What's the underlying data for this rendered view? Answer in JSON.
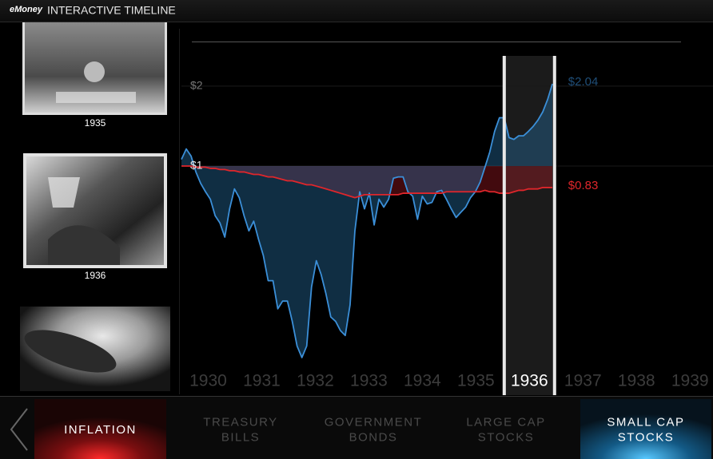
{
  "header": {
    "brand": "eMoney",
    "title": "INTERACTIVE TIMELINE"
  },
  "photos": [
    {
      "caption": "1935"
    },
    {
      "caption": "1936"
    },
    {
      "caption": null
    }
  ],
  "chart_data": {
    "type": "line",
    "log_scale": true,
    "x": [
      1930,
      1930.09,
      1930.18,
      1930.27,
      1930.36,
      1930.45,
      1930.54,
      1930.63,
      1930.72,
      1930.81,
      1930.9,
      1930.99,
      1931.08,
      1931.17,
      1931.26,
      1931.35,
      1931.44,
      1931.53,
      1931.62,
      1931.71,
      1931.8,
      1931.89,
      1931.98,
      1932.07,
      1932.16,
      1932.25,
      1932.34,
      1932.43,
      1932.52,
      1932.61,
      1932.7,
      1932.79,
      1932.88,
      1932.97,
      1933.06,
      1933.15,
      1933.24,
      1933.33,
      1933.42,
      1933.51,
      1933.6,
      1933.69,
      1933.78,
      1933.87,
      1933.96,
      1934.05,
      1934.14,
      1934.23,
      1934.32,
      1934.41,
      1934.5,
      1934.59,
      1934.68,
      1934.77,
      1934.86,
      1934.95,
      1935.04,
      1935.13,
      1935.22,
      1935.31,
      1935.4,
      1935.49,
      1935.58,
      1935.67,
      1935.76,
      1935.85,
      1935.94,
      1936.03,
      1936.12,
      1936.21,
      1936.3,
      1936.39,
      1936.48,
      1936.57,
      1936.66,
      1936.75,
      1936.84,
      1936.93
    ],
    "series": [
      {
        "name": "SMALL CAP STOCKS",
        "color": "#3b8fd8",
        "end_label": "$2.04",
        "values": [
          1.06,
          1.16,
          1.09,
          0.95,
          0.86,
          0.8,
          0.75,
          0.65,
          0.61,
          0.54,
          0.69,
          0.82,
          0.76,
          0.65,
          0.57,
          0.62,
          0.53,
          0.46,
          0.37,
          0.37,
          0.29,
          0.31,
          0.31,
          0.26,
          0.21,
          0.19,
          0.21,
          0.35,
          0.44,
          0.39,
          0.33,
          0.27,
          0.26,
          0.24,
          0.23,
          0.3,
          0.57,
          0.8,
          0.69,
          0.79,
          0.6,
          0.75,
          0.7,
          0.75,
          0.9,
          0.91,
          0.91,
          0.8,
          0.77,
          0.63,
          0.77,
          0.72,
          0.73,
          0.8,
          0.81,
          0.75,
          0.69,
          0.64,
          0.67,
          0.7,
          0.76,
          0.8,
          0.87,
          0.99,
          1.13,
          1.35,
          1.52,
          1.52,
          1.28,
          1.26,
          1.3,
          1.3,
          1.35,
          1.41,
          1.49,
          1.6,
          1.78,
          2.04
        ]
      },
      {
        "name": "INFLATION",
        "color": "#e0262b",
        "end_label": "$0.83",
        "values": [
          1,
          1,
          1,
          0.99,
          0.99,
          0.99,
          0.98,
          0.98,
          0.97,
          0.97,
          0.96,
          0.96,
          0.95,
          0.95,
          0.94,
          0.93,
          0.93,
          0.92,
          0.91,
          0.91,
          0.9,
          0.89,
          0.88,
          0.88,
          0.87,
          0.86,
          0.85,
          0.85,
          0.84,
          0.83,
          0.82,
          0.81,
          0.8,
          0.79,
          0.78,
          0.77,
          0.76,
          0.77,
          0.78,
          0.78,
          0.78,
          0.78,
          0.78,
          0.78,
          0.78,
          0.78,
          0.79,
          0.79,
          0.79,
          0.79,
          0.79,
          0.79,
          0.79,
          0.79,
          0.79,
          0.8,
          0.8,
          0.8,
          0.8,
          0.8,
          0.8,
          0.8,
          0.8,
          0.81,
          0.8,
          0.8,
          0.79,
          0.79,
          0.79,
          0.8,
          0.81,
          0.81,
          0.82,
          0.82,
          0.82,
          0.83,
          0.83,
          0.83
        ]
      }
    ],
    "xlim": [
      1930,
      1939.93
    ],
    "ylim": [
      0.14,
      3.2
    ],
    "xticks": [
      1930,
      1931,
      1932,
      1933,
      1934,
      1935,
      1936,
      1937,
      1938,
      1939
    ],
    "yticks": [
      {
        "value": 2,
        "label": "$2"
      },
      {
        "value": 1,
        "label": "$1"
      }
    ],
    "selected_year": 1936
  },
  "tabs": [
    {
      "lines": [
        "INFLATION"
      ],
      "active": "red"
    },
    {
      "lines": [
        "TREASURY",
        "BILLS"
      ],
      "active": null
    },
    {
      "lines": [
        "GOVERNMENT",
        "BONDS"
      ],
      "active": null
    },
    {
      "lines": [
        "LARGE CAP",
        "STOCKS"
      ],
      "active": null
    },
    {
      "lines": [
        "SMALL CAP",
        "STOCKS"
      ],
      "active": "blue"
    }
  ]
}
